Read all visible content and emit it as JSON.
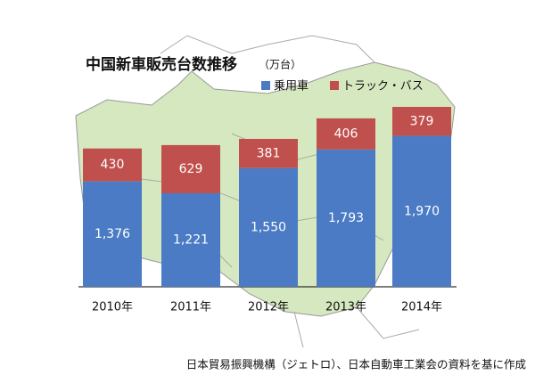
{
  "chart_data": {
    "type": "stacked_bar",
    "title": "中国新車販売台数推移",
    "subtitle": "（万台）",
    "categories": [
      "2010年",
      "2011年",
      "2012年",
      "2013年",
      "2014年"
    ],
    "series": [
      {
        "name": "乗用車",
        "color": "#4a7bc4",
        "values": [
          1376,
          1221,
          1550,
          1793,
          1970
        ],
        "value_labels": [
          "1,376",
          "1,221",
          "1,550",
          "1,793",
          "1,970"
        ]
      },
      {
        "name": "トラック・バス",
        "color": "#c0504d",
        "values": [
          430,
          629,
          381,
          406,
          379
        ]
      }
    ],
    "source": "日本貿易振興機構（ジェトロ）、日本自動車工業会の資料を基に作成"
  }
}
